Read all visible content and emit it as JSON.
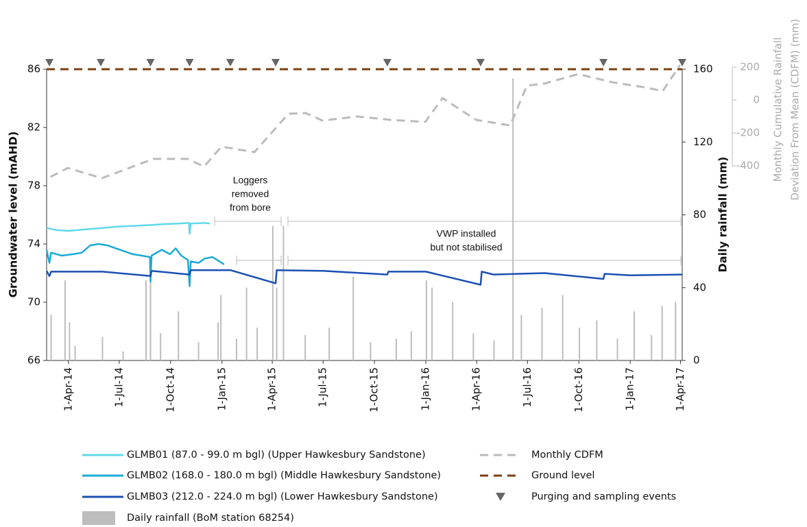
{
  "chart_data": {
    "type": "line",
    "y_label": "Groundwater level (mAHD)",
    "y2_label": "Daily rainfall (mm)",
    "y3_label": [
      "Monthly Cumulative Rainfall",
      "Deviation From Mean (CDFM) (mm)"
    ],
    "xlim": [
      "2014-02-21",
      "2017-04-04"
    ],
    "xticks": [
      {
        "value": "2014-04-01",
        "label": "1-Apr-14"
      },
      {
        "value": "2014-07-01",
        "label": "1-Jul-14"
      },
      {
        "value": "2014-10-01",
        "label": "1-Oct-14"
      },
      {
        "value": "2015-01-01",
        "label": "1-Jan-15"
      },
      {
        "value": "2015-04-01",
        "label": "1-Apr-15"
      },
      {
        "value": "2015-07-01",
        "label": "1-Jul-15"
      },
      {
        "value": "2015-10-01",
        "label": "1-Oct-15"
      },
      {
        "value": "2016-01-01",
        "label": "1-Jan-16"
      },
      {
        "value": "2016-04-01",
        "label": "1-Apr-16"
      },
      {
        "value": "2016-07-01",
        "label": "1-Jul-16"
      },
      {
        "value": "2016-10-01",
        "label": "1-Oct-16"
      },
      {
        "value": "2017-01-01",
        "label": "1-Jan-17"
      },
      {
        "value": "2017-04-01",
        "label": "1-Apr-17"
      }
    ],
    "ylim": [
      66,
      86
    ],
    "yticks": [
      66,
      70,
      74,
      78,
      82,
      86
    ],
    "y2lim": [
      0,
      160
    ],
    "y2ticks": [
      0,
      40,
      80,
      120,
      160
    ],
    "y3lim": [
      -400,
      200
    ],
    "y3ticks": [
      -400,
      -200,
      0,
      200
    ],
    "annotations": [
      {
        "text": [
          "Loggers",
          "removed",
          "from bore"
        ]
      },
      {
        "text": [
          "VWP installed",
          "but not stabilised"
        ]
      }
    ],
    "series": [
      {
        "name": "GLMB01 (87.0 - 99.0 m bgl) (Upper Hawkesbury Sandstone)",
        "color": "#5fd9ea",
        "x": [
          "2014-02-21",
          "2014-03-10",
          "2014-04-01",
          "2014-05-01",
          "2014-06-01",
          "2014-07-01",
          "2014-08-01",
          "2014-08-26",
          "2014-09-15",
          "2014-10-15",
          "2014-11-03",
          "2014-11-04",
          "2014-11-06",
          "2014-12-01",
          "2014-12-10"
        ],
        "values": [
          75.1,
          74.95,
          74.9,
          75.0,
          75.1,
          75.2,
          75.25,
          75.3,
          75.35,
          75.4,
          75.45,
          74.7,
          75.4,
          75.45,
          75.4
        ]
      },
      {
        "name": "GLMB02 (168.0 - 180.0 m bgl) (Middle Hawkesbury Sandstone)",
        "color": "#1ba9d6",
        "x": [
          "2014-02-21",
          "2014-02-26",
          "2014-03-01",
          "2014-03-20",
          "2014-04-10",
          "2014-04-25",
          "2014-05-10",
          "2014-05-25",
          "2014-06-10",
          "2014-06-25",
          "2014-07-10",
          "2014-07-25",
          "2014-08-10",
          "2014-08-25",
          "2014-08-26",
          "2014-08-28",
          "2014-09-15",
          "2014-09-30",
          "2014-10-10",
          "2014-10-20",
          "2014-11-01",
          "2014-11-04",
          "2014-11-06",
          "2014-11-20",
          "2014-12-01",
          "2014-12-15",
          "2015-01-05"
        ],
        "values": [
          73.6,
          72.7,
          73.4,
          73.2,
          73.3,
          73.4,
          73.9,
          74.0,
          73.9,
          73.7,
          73.5,
          73.3,
          73.2,
          73.1,
          71.4,
          73.2,
          73.6,
          73.3,
          73.7,
          73.2,
          72.9,
          71.1,
          72.8,
          72.7,
          73.0,
          73.1,
          72.6
        ]
      },
      {
        "name": "GLMB03 (212.0 - 224.0 m bgl) (Lower Hawkesbury Sandstone)",
        "color": "#1b4fb3",
        "x": [
          "2014-02-21",
          "2014-02-26",
          "2014-03-01",
          "2014-06-01",
          "2014-08-26",
          "2014-08-28",
          "2014-11-04",
          "2014-11-06",
          "2015-01-16",
          "2015-04-07",
          "2015-04-09",
          "2015-07-01",
          "2015-10-24",
          "2015-10-26",
          "2016-01-01",
          "2016-04-08",
          "2016-04-10",
          "2016-05-01",
          "2016-08-01",
          "2016-11-14",
          "2016-11-16",
          "2017-01-01",
          "2017-04-04"
        ],
        "values": [
          72.15,
          71.8,
          72.1,
          72.1,
          71.8,
          72.15,
          71.9,
          72.2,
          72.2,
          71.3,
          72.2,
          72.15,
          71.9,
          72.1,
          72.1,
          71.2,
          72.1,
          71.9,
          72.0,
          71.6,
          71.95,
          71.85,
          71.9
        ]
      },
      {
        "name": "Daily rainfall (BoM station 68254)",
        "color": "#bdbdbd",
        "kind": "bar",
        "axis": "y2",
        "x": [
          "2014-03-01",
          "2014-03-26",
          "2014-04-03",
          "2014-04-13",
          "2014-06-01",
          "2014-07-08",
          "2014-08-18",
          "2014-08-26",
          "2014-09-13",
          "2014-10-15",
          "2014-11-20",
          "2014-12-25",
          "2014-12-30",
          "2015-01-27",
          "2015-02-14",
          "2015-03-05",
          "2015-04-02",
          "2015-04-09",
          "2015-04-21",
          "2015-05-30",
          "2015-07-12",
          "2015-08-24",
          "2015-09-24",
          "2015-11-09",
          "2015-12-06",
          "2016-01-02",
          "2016-01-12",
          "2016-02-18",
          "2016-03-26",
          "2016-05-02",
          "2016-06-05",
          "2016-06-20",
          "2016-07-27",
          "2016-09-02",
          "2016-10-02",
          "2016-11-02",
          "2016-12-09",
          "2017-01-08",
          "2017-02-08",
          "2017-02-27",
          "2017-03-23"
        ],
        "values": [
          25,
          44,
          21,
          8,
          13,
          5,
          44,
          47,
          15,
          27,
          10,
          21,
          36,
          12,
          40,
          18,
          74,
          40,
          74,
          14,
          18,
          46,
          10,
          12,
          16,
          44,
          40,
          32,
          15,
          11,
          155,
          25,
          29,
          36,
          18,
          22,
          12,
          27,
          14,
          30,
          32
        ]
      },
      {
        "name": "Monthly CDFM",
        "color": "#bbbbbb",
        "kind": "dashed",
        "axis": "y3",
        "x": [
          "2014-02-28",
          "2014-03-31",
          "2014-05-31",
          "2014-08-31",
          "2014-10-31",
          "2014-11-30",
          "2014-12-31",
          "2015-02-28",
          "2015-04-30",
          "2015-05-31",
          "2015-06-30",
          "2015-08-31",
          "2015-10-31",
          "2015-12-31",
          "2016-01-31",
          "2016-03-31",
          "2016-05-31",
          "2016-06-30",
          "2016-07-31",
          "2016-09-30",
          "2016-11-30",
          "2017-01-31",
          "2017-02-28",
          "2017-03-31"
        ],
        "values": [
          -467,
          -413,
          -475,
          -358,
          -358,
          -404,
          -283,
          -317,
          -83,
          -79,
          -125,
          -100,
          -121,
          -133,
          12,
          -121,
          -154,
          88,
          100,
          158,
          108,
          75,
          54,
          212
        ]
      },
      {
        "name": "Ground level",
        "color": "#7b3f12",
        "kind": "dashed",
        "x": [
          "2014-02-21",
          "2017-04-04"
        ],
        "values": [
          86,
          86
        ]
      },
      {
        "name": "Purging and sampling events",
        "color": "#666666",
        "kind": "event",
        "x": [
          "2014-02-26",
          "2014-05-29",
          "2014-08-26",
          "2014-11-04",
          "2015-01-16",
          "2015-04-07",
          "2015-10-24",
          "2016-04-08",
          "2016-11-14",
          "2017-04-04"
        ]
      }
    ]
  }
}
